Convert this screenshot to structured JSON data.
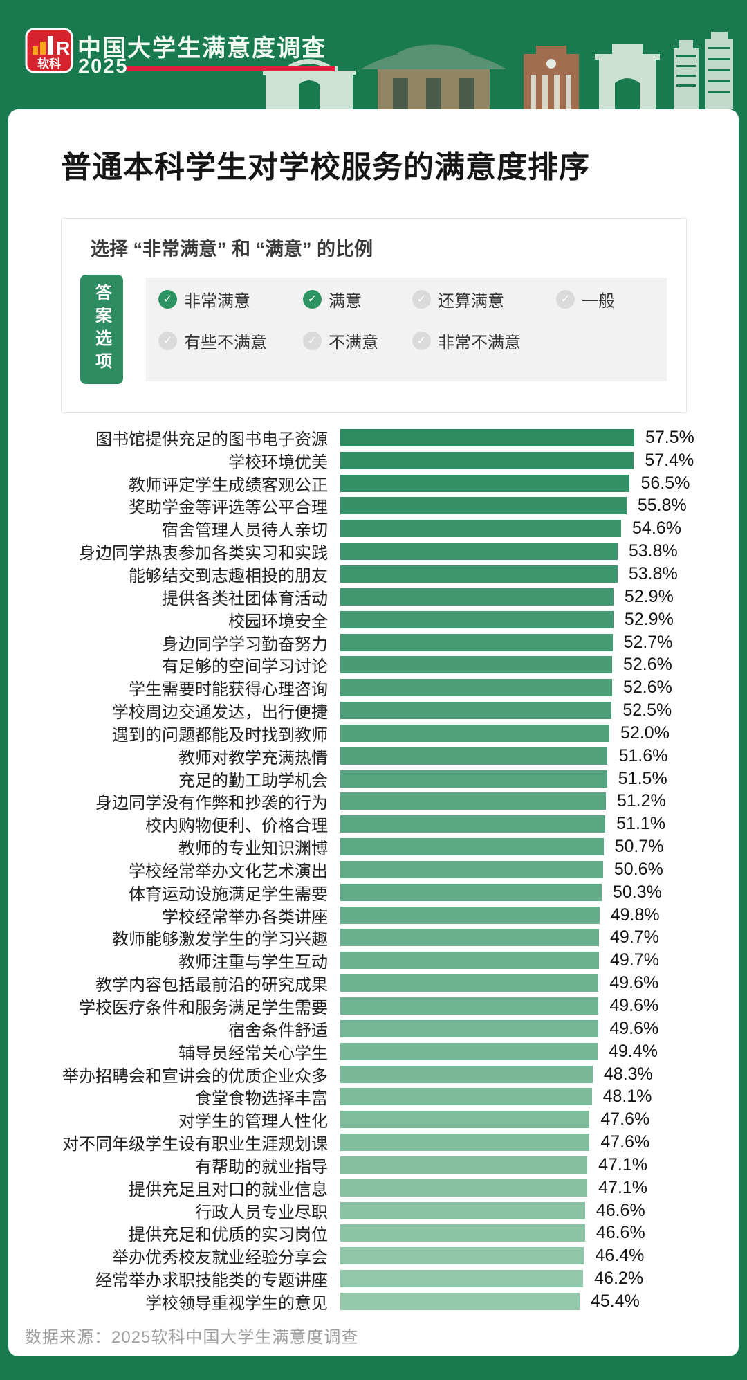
{
  "page": {
    "background_color": "#1A7A4F",
    "card_color": "#FFFFFF"
  },
  "header": {
    "logo": {
      "brand": "软科",
      "mark": "R",
      "bg": "#D7232E",
      "bars_color": "#F7A61B"
    },
    "title": "中国大学生满意度调查",
    "year": "2025",
    "underline_color": "#E31C3D"
  },
  "main_title": "普通本科学生对学校服务的满意度排序",
  "legend": {
    "heading": "选择 “非常满意” 和 “满意” 的比例",
    "tab_label": "答案选项",
    "tab_color": "#2E8C62",
    "checked_color": "#2E9363",
    "unchecked_color": "#DADADA",
    "check_glyph": "✓",
    "options": [
      {
        "label": "非常满意",
        "checked": true
      },
      {
        "label": "满意",
        "checked": true
      },
      {
        "label": "还算满意",
        "checked": false
      },
      {
        "label": "一般",
        "checked": false
      },
      {
        "label": "有些不满意",
        "checked": false
      },
      {
        "label": "不满意",
        "checked": false
      },
      {
        "label": "非常不满意",
        "checked": false
      }
    ]
  },
  "chart_data": {
    "type": "bar",
    "orientation": "horizontal",
    "title": "普通本科学生对学校服务的满意度排序",
    "xlabel": "选择“非常满意”和“满意”的比例",
    "ylabel": "",
    "xlim": [
      0,
      60
    ],
    "grid": false,
    "value_suffix": "%",
    "bar_color_start": "#2E8C62",
    "bar_color_end": "#94C9AC",
    "categories": [
      "图书馆提供充足的图书电子资源",
      "学校环境优美",
      "教师评定学生成绩客观公正",
      "奖助学金等评选等公平合理",
      "宿舍管理人员待人亲切",
      "身边同学热衷参加各类实习和实践",
      "能够结交到志趣相投的朋友",
      "提供各类社团体育活动",
      "校园环境安全",
      "身边同学学习勤奋努力",
      "有足够的空间学习讨论",
      "学生需要时能获得心理咨询",
      "学校周边交通发达，出行便捷",
      "遇到的问题都能及时找到教师",
      "教师对教学充满热情",
      "充足的勤工助学机会",
      "身边同学没有作弊和抄袭的行为",
      "校内购物便利、价格合理",
      "教师的专业知识渊博",
      "学校经常举办文化艺术演出",
      "体育运动设施满足学生需要",
      "学校经常举办各类讲座",
      "教师能够激发学生的学习兴趣",
      "教师注重与学生互动",
      "教学内容包括最前沿的研究成果",
      "学校医疗条件和服务满足学生需要",
      "宿舍条件舒适",
      "辅导员经常关心学生",
      "举办招聘会和宣讲会的优质企业众多",
      "食堂食物选择丰富",
      "对学生的管理人性化",
      "对不同年级学生设有职业生涯规划课",
      "有帮助的就业指导",
      "提供充足且对口的就业信息",
      "行政人员专业尽职",
      "提供充足和优质的实习岗位",
      "举办优秀校友就业经验分享会",
      "经常举办求职技能类的专题讲座",
      "学校领导重视学生的意见"
    ],
    "values": [
      57.5,
      57.4,
      56.5,
      55.8,
      54.6,
      53.8,
      53.8,
      52.9,
      52.9,
      52.7,
      52.6,
      52.6,
      52.5,
      52.0,
      51.6,
      51.5,
      51.2,
      51.1,
      50.7,
      50.6,
      50.3,
      49.8,
      49.7,
      49.7,
      49.6,
      49.6,
      49.6,
      49.4,
      48.3,
      48.1,
      47.6,
      47.6,
      47.1,
      47.1,
      46.6,
      46.6,
      46.4,
      46.2,
      45.4
    ]
  },
  "footer": {
    "source": "数据来源：2025软科中国大学生满意度调查"
  }
}
